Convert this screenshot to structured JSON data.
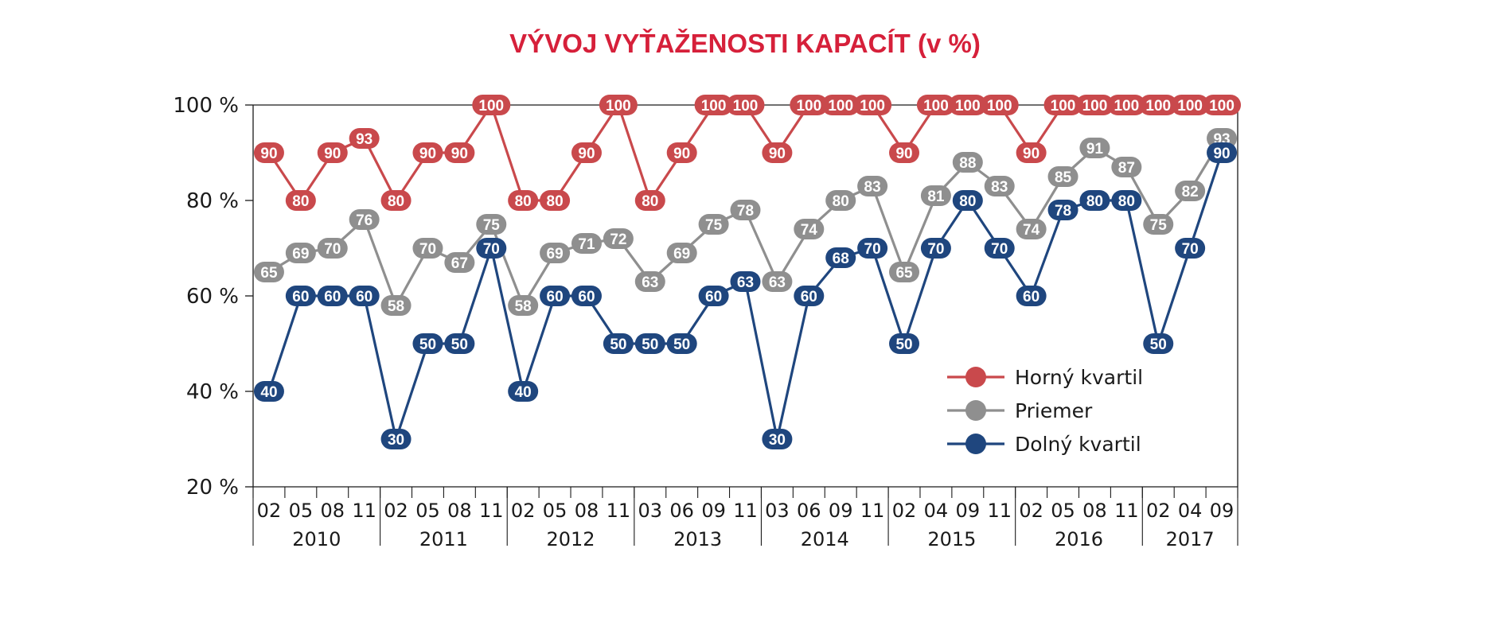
{
  "chart_data": {
    "type": "line",
    "title": "VÝVOJ VYŤAŽENOSTI KAPACÍT (v %)",
    "y_ticks": [
      "100 %",
      "80 %",
      "60 %",
      "40 %",
      "20 %"
    ],
    "y_tick_values": [
      100,
      80,
      60,
      40,
      20
    ],
    "ylim": [
      20,
      100
    ],
    "grid": false,
    "legend_position": "bottom-right",
    "categories": [
      "02",
      "05",
      "08",
      "11",
      "02",
      "05",
      "08",
      "11",
      "02",
      "05",
      "08",
      "11",
      "03",
      "06",
      "09",
      "11",
      "03",
      "06",
      "09",
      "11",
      "02",
      "04",
      "09",
      "11",
      "02",
      "05",
      "08",
      "11",
      "02",
      "04",
      "09"
    ],
    "year_groups": [
      {
        "label": "2010",
        "count": 4
      },
      {
        "label": "2011",
        "count": 4
      },
      {
        "label": "2012",
        "count": 4
      },
      {
        "label": "2013",
        "count": 4
      },
      {
        "label": "2014",
        "count": 4
      },
      {
        "label": "2015",
        "count": 4
      },
      {
        "label": "2016",
        "count": 4
      },
      {
        "label": "2017",
        "count": 3
      }
    ],
    "series": [
      {
        "name": "Horný kvartil",
        "color": "#c9494c",
        "values": [
          90,
          80,
          90,
          93,
          80,
          90,
          90,
          100,
          80,
          80,
          90,
          100,
          80,
          90,
          100,
          100,
          90,
          100,
          100,
          100,
          90,
          100,
          100,
          100,
          90,
          100,
          100,
          100,
          100,
          100,
          100
        ]
      },
      {
        "name": "Priemer",
        "color": "#8f8f8f",
        "values": [
          65,
          69,
          70,
          76,
          58,
          70,
          67,
          75,
          58,
          69,
          71,
          72,
          63,
          69,
          75,
          78,
          63,
          74,
          80,
          83,
          65,
          81,
          88,
          83,
          74,
          85,
          91,
          87,
          75,
          82,
          93
        ]
      },
      {
        "name": "Dolný kvartil",
        "color": "#1f467e",
        "values": [
          40,
          60,
          60,
          60,
          30,
          50,
          50,
          70,
          40,
          60,
          60,
          50,
          50,
          50,
          60,
          63,
          30,
          60,
          68,
          70,
          50,
          70,
          80,
          70,
          60,
          78,
          80,
          80,
          50,
          70,
          90
        ]
      }
    ]
  }
}
